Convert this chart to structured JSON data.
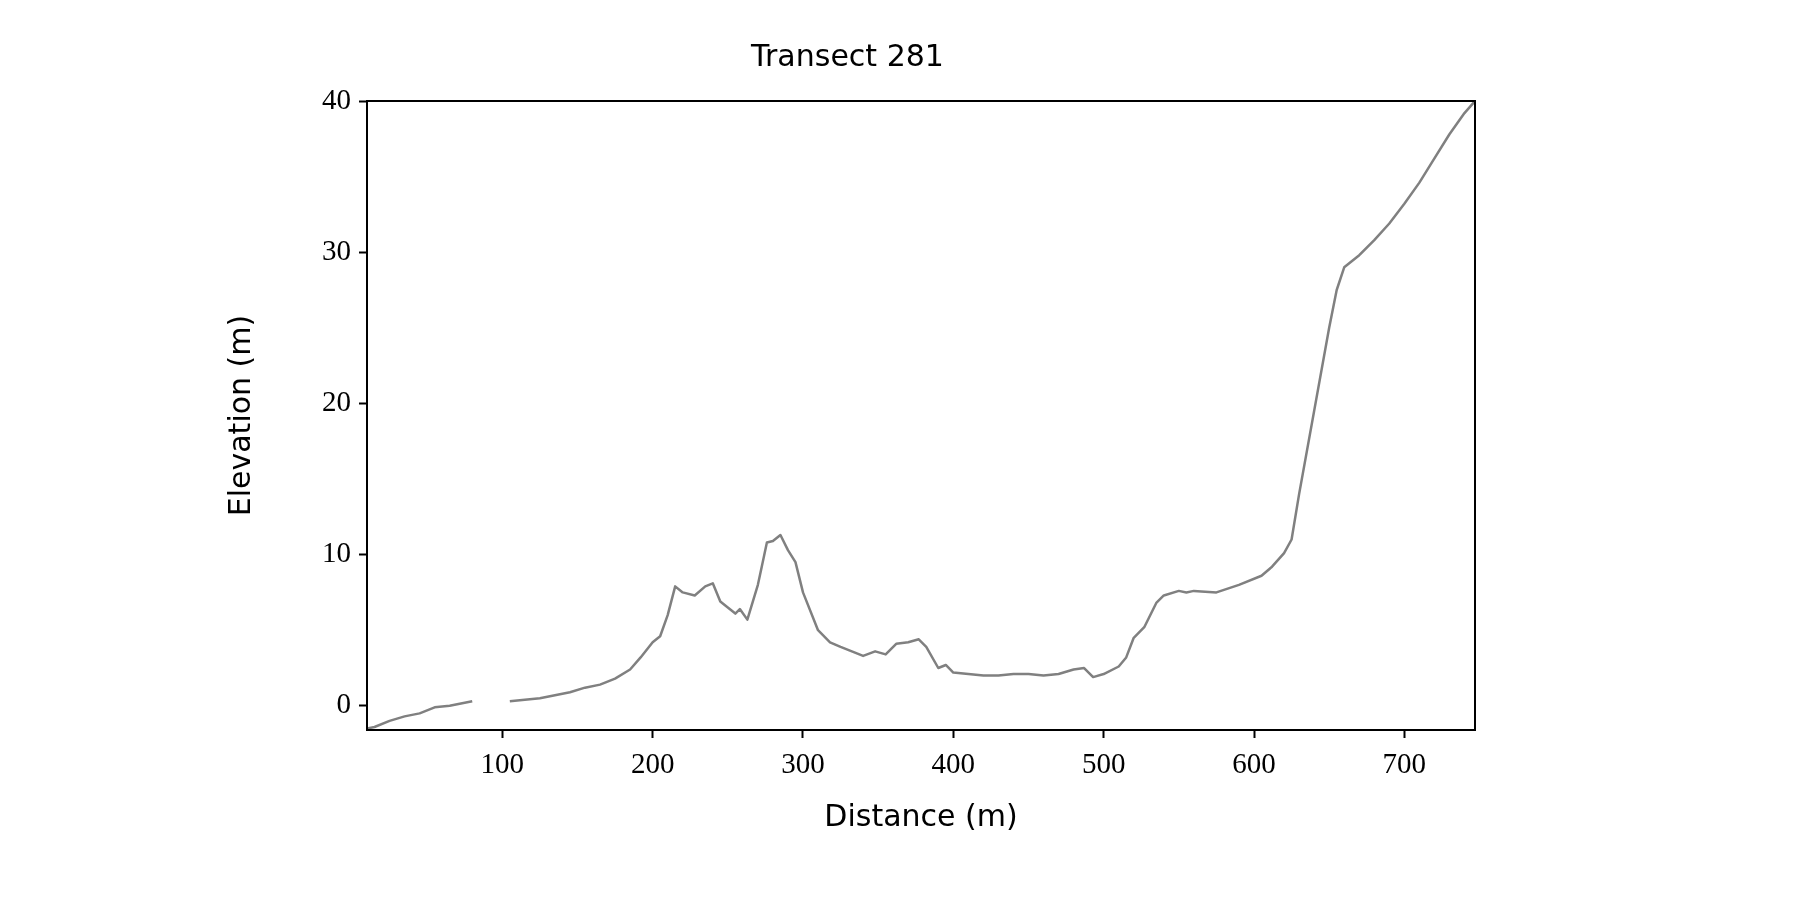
{
  "chart_data": {
    "type": "line",
    "title": "Transect 281",
    "xlabel": "Distance (m)",
    "ylabel": "Elevation (m)",
    "x": [
      10,
      15,
      25,
      35,
      45,
      55,
      65,
      75,
      80,
      92,
      105,
      115,
      125,
      135,
      145,
      155,
      165,
      175,
      185,
      192,
      200,
      205,
      210,
      215,
      220,
      228,
      235,
      240,
      245,
      250,
      255,
      258,
      263,
      270,
      276,
      280,
      285,
      290,
      295,
      300,
      310,
      318,
      325,
      335,
      340,
      348,
      355,
      362,
      370,
      377,
      382,
      390,
      395,
      400,
      410,
      420,
      430,
      440,
      450,
      460,
      470,
      480,
      487,
      493,
      500,
      510,
      515,
      520,
      527,
      535,
      540,
      550,
      555,
      560,
      575,
      590,
      605,
      612,
      620,
      625,
      630,
      640,
      650,
      655,
      660,
      670,
      680,
      690,
      700,
      710,
      720,
      730,
      740,
      747
    ],
    "series": [
      {
        "color": "#808080",
        "values": [
          -1.5,
          -1.4,
          -1.0,
          -0.7,
          -0.5,
          -0.1,
          0.0,
          0.2,
          0.3,
          null,
          0.3,
          0.4,
          0.5,
          0.7,
          0.9,
          1.2,
          1.4,
          1.8,
          2.4,
          3.2,
          4.2,
          4.6,
          6.0,
          7.9,
          7.5,
          7.3,
          7.9,
          8.1,
          6.9,
          6.5,
          6.1,
          6.4,
          5.7,
          8.0,
          10.8,
          10.9,
          11.3,
          10.3,
          9.5,
          7.5,
          5.0,
          4.2,
          3.9,
          3.5,
          3.3,
          3.6,
          3.4,
          4.1,
          4.2,
          4.4,
          3.9,
          2.5,
          2.7,
          2.2,
          2.1,
          2.0,
          2.0,
          2.1,
          2.1,
          2.0,
          2.1,
          2.4,
          2.5,
          1.9,
          2.1,
          2.6,
          3.2,
          4.5,
          5.2,
          6.8,
          7.3,
          7.6,
          7.5,
          7.6,
          7.5,
          8.0,
          8.6,
          9.2,
          10.1,
          11.0,
          14.0,
          19.5,
          25.0,
          27.5,
          29.0,
          29.8,
          30.8,
          31.9,
          33.2,
          34.6,
          36.2,
          37.8,
          39.2,
          40.0
        ]
      }
    ],
    "xlim": [
      10,
      747
    ],
    "xticks": [
      100,
      200,
      300,
      400,
      500,
      600,
      700
    ],
    "ylim": [
      -1.6,
      40
    ],
    "yticks": [
      0,
      10,
      20,
      30,
      40
    ],
    "grid": false,
    "legend": false,
    "marker": "none",
    "line_style": "solid"
  }
}
